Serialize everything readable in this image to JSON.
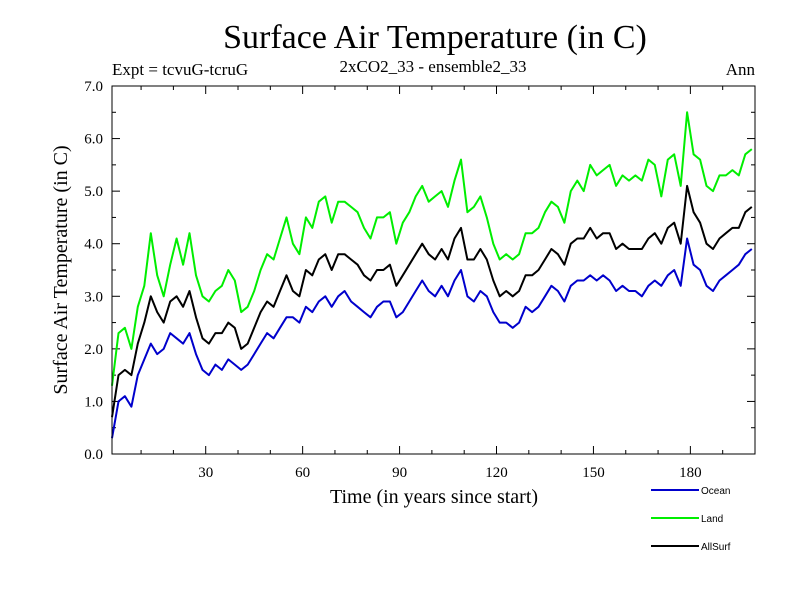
{
  "chart_data": {
    "type": "line",
    "title": "Surface Air Temperature (in C)",
    "subtitle_left": "Expt = tcvuG-tcruG",
    "subtitle_center": "2xCO2_33 - ensemble2_33",
    "subtitle_right": "Ann",
    "xlabel": "Time (in years since start)",
    "ylabel": "Surface Air Temperature (in C)",
    "xlim": [
      1,
      200
    ],
    "ylim": [
      0,
      7
    ],
    "xticks": [
      30,
      60,
      90,
      120,
      150,
      180
    ],
    "xtick_labels": [
      "30",
      "60",
      "90",
      "120",
      "150",
      "180"
    ],
    "yticks": [
      0,
      1,
      2,
      3,
      4,
      5,
      6,
      7
    ],
    "ytick_labels": [
      "0.0",
      "1.0",
      "2.0",
      "3.0",
      "4.0",
      "5.0",
      "6.0",
      "7.0"
    ],
    "legend_position": "bottom-right, outside plot",
    "series": [
      {
        "name": "Ocean",
        "color": "#0000cc",
        "x": [
          1,
          3,
          5,
          7,
          9,
          11,
          13,
          15,
          17,
          19,
          21,
          23,
          25,
          27,
          29,
          31,
          33,
          35,
          37,
          39,
          41,
          43,
          45,
          47,
          49,
          51,
          53,
          55,
          57,
          59,
          61,
          63,
          65,
          67,
          69,
          71,
          73,
          75,
          77,
          79,
          81,
          83,
          85,
          87,
          89,
          91,
          93,
          95,
          97,
          99,
          101,
          103,
          105,
          107,
          109,
          111,
          113,
          115,
          117,
          119,
          121,
          123,
          125,
          127,
          129,
          131,
          133,
          135,
          137,
          139,
          141,
          143,
          145,
          147,
          149,
          151,
          153,
          155,
          157,
          159,
          161,
          163,
          165,
          167,
          169,
          171,
          173,
          175,
          177,
          179,
          181,
          183,
          185,
          187,
          189,
          191,
          193,
          195,
          197,
          199
        ],
        "y": [
          0.3,
          1.0,
          1.1,
          0.9,
          1.5,
          1.8,
          2.1,
          1.9,
          2.0,
          2.3,
          2.2,
          2.1,
          2.3,
          1.9,
          1.6,
          1.5,
          1.7,
          1.6,
          1.8,
          1.7,
          1.6,
          1.7,
          1.9,
          2.1,
          2.3,
          2.2,
          2.4,
          2.6,
          2.6,
          2.5,
          2.8,
          2.7,
          2.9,
          3.0,
          2.8,
          3.0,
          3.1,
          2.9,
          2.8,
          2.7,
          2.6,
          2.8,
          2.9,
          2.9,
          2.6,
          2.7,
          2.9,
          3.1,
          3.3,
          3.1,
          3.0,
          3.2,
          3.0,
          3.3,
          3.5,
          3.0,
          2.9,
          3.1,
          3.0,
          2.7,
          2.5,
          2.5,
          2.4,
          2.5,
          2.8,
          2.7,
          2.8,
          3.0,
          3.2,
          3.1,
          2.9,
          3.2,
          3.3,
          3.3,
          3.4,
          3.3,
          3.4,
          3.3,
          3.1,
          3.2,
          3.1,
          3.1,
          3.0,
          3.2,
          3.3,
          3.2,
          3.4,
          3.5,
          3.2,
          4.1,
          3.6,
          3.5,
          3.2,
          3.1,
          3.3,
          3.4,
          3.5,
          3.6,
          3.8,
          3.9
        ]
      },
      {
        "name": "Land",
        "color": "#00ee00",
        "x": [
          1,
          3,
          5,
          7,
          9,
          11,
          13,
          15,
          17,
          19,
          21,
          23,
          25,
          27,
          29,
          31,
          33,
          35,
          37,
          39,
          41,
          43,
          45,
          47,
          49,
          51,
          53,
          55,
          57,
          59,
          61,
          63,
          65,
          67,
          69,
          71,
          73,
          75,
          77,
          79,
          81,
          83,
          85,
          87,
          89,
          91,
          93,
          95,
          97,
          99,
          101,
          103,
          105,
          107,
          109,
          111,
          113,
          115,
          117,
          119,
          121,
          123,
          125,
          127,
          129,
          131,
          133,
          135,
          137,
          139,
          141,
          143,
          145,
          147,
          149,
          151,
          153,
          155,
          157,
          159,
          161,
          163,
          165,
          167,
          169,
          171,
          173,
          175,
          177,
          179,
          181,
          183,
          185,
          187,
          189,
          191,
          193,
          195,
          197,
          199
        ],
        "y": [
          1.3,
          2.3,
          2.4,
          2.0,
          2.8,
          3.2,
          4.2,
          3.4,
          3.0,
          3.6,
          4.1,
          3.6,
          4.2,
          3.4,
          3.0,
          2.9,
          3.1,
          3.2,
          3.5,
          3.3,
          2.7,
          2.8,
          3.1,
          3.5,
          3.8,
          3.7,
          4.1,
          4.5,
          4.0,
          3.8,
          4.5,
          4.3,
          4.8,
          4.9,
          4.4,
          4.8,
          4.8,
          4.7,
          4.6,
          4.3,
          4.1,
          4.5,
          4.5,
          4.6,
          4.0,
          4.4,
          4.6,
          4.9,
          5.1,
          4.8,
          4.9,
          5.0,
          4.7,
          5.2,
          5.6,
          4.6,
          4.7,
          4.9,
          4.5,
          4.0,
          3.7,
          3.8,
          3.7,
          3.8,
          4.2,
          4.2,
          4.3,
          4.6,
          4.8,
          4.7,
          4.4,
          5.0,
          5.2,
          5.0,
          5.5,
          5.3,
          5.4,
          5.5,
          5.1,
          5.3,
          5.2,
          5.3,
          5.2,
          5.6,
          5.5,
          4.9,
          5.6,
          5.7,
          5.1,
          6.5,
          5.7,
          5.6,
          5.1,
          5.0,
          5.3,
          5.3,
          5.4,
          5.3,
          5.7,
          5.8
        ]
      },
      {
        "name": "AllSurf",
        "color": "#000000",
        "x": [
          1,
          3,
          5,
          7,
          9,
          11,
          13,
          15,
          17,
          19,
          21,
          23,
          25,
          27,
          29,
          31,
          33,
          35,
          37,
          39,
          41,
          43,
          45,
          47,
          49,
          51,
          53,
          55,
          57,
          59,
          61,
          63,
          65,
          67,
          69,
          71,
          73,
          75,
          77,
          79,
          81,
          83,
          85,
          87,
          89,
          91,
          93,
          95,
          97,
          99,
          101,
          103,
          105,
          107,
          109,
          111,
          113,
          115,
          117,
          119,
          121,
          123,
          125,
          127,
          129,
          131,
          133,
          135,
          137,
          139,
          141,
          143,
          145,
          147,
          149,
          151,
          153,
          155,
          157,
          159,
          161,
          163,
          165,
          167,
          169,
          171,
          173,
          175,
          177,
          179,
          181,
          183,
          185,
          187,
          189,
          191,
          193,
          195,
          197,
          199
        ],
        "y": [
          0.7,
          1.5,
          1.6,
          1.5,
          2.1,
          2.5,
          3.0,
          2.7,
          2.5,
          2.9,
          3.0,
          2.8,
          3.1,
          2.6,
          2.2,
          2.1,
          2.3,
          2.3,
          2.5,
          2.4,
          2.0,
          2.1,
          2.4,
          2.7,
          2.9,
          2.8,
          3.1,
          3.4,
          3.1,
          3.0,
          3.5,
          3.4,
          3.7,
          3.8,
          3.5,
          3.8,
          3.8,
          3.7,
          3.6,
          3.4,
          3.3,
          3.5,
          3.5,
          3.6,
          3.2,
          3.4,
          3.6,
          3.8,
          4.0,
          3.8,
          3.7,
          3.9,
          3.7,
          4.1,
          4.3,
          3.7,
          3.7,
          3.9,
          3.7,
          3.3,
          3.0,
          3.1,
          3.0,
          3.1,
          3.4,
          3.4,
          3.5,
          3.7,
          3.9,
          3.8,
          3.6,
          4.0,
          4.1,
          4.1,
          4.3,
          4.1,
          4.2,
          4.2,
          3.9,
          4.0,
          3.9,
          3.9,
          3.9,
          4.1,
          4.2,
          4.0,
          4.3,
          4.4,
          4.0,
          5.1,
          4.6,
          4.4,
          4.0,
          3.9,
          4.1,
          4.2,
          4.3,
          4.3,
          4.6,
          4.7
        ]
      }
    ]
  }
}
